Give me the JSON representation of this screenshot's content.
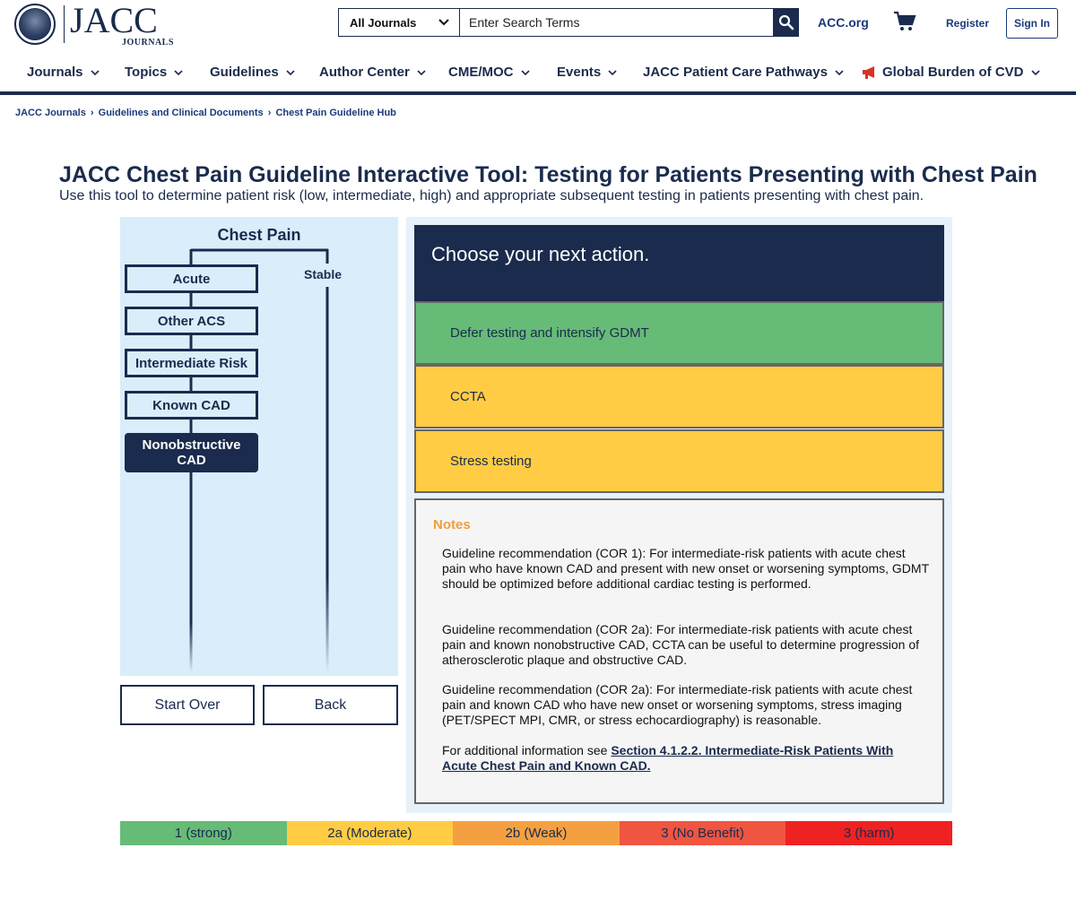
{
  "header": {
    "logo_text": "JACC",
    "logo_sub": "JOURNALS",
    "search": {
      "select_label": "All Journals",
      "placeholder": "Enter Search Terms"
    },
    "acc_link": "ACC.org",
    "register": "Register",
    "sign_in": "Sign In"
  },
  "nav": {
    "items": [
      {
        "label": "Journals"
      },
      {
        "label": "Topics"
      },
      {
        "label": "Guidelines"
      },
      {
        "label": "Author Center"
      },
      {
        "label": "CME/MOC"
      },
      {
        "label": "Events"
      },
      {
        "label": "JACC Patient Care Pathways"
      },
      {
        "label": "Global Burden of CVD"
      }
    ]
  },
  "breadcrumb": {
    "items": [
      "JACC Journals",
      "Guidelines and Clinical Documents",
      "Chest Pain Guideline Hub"
    ],
    "separator": "›"
  },
  "page": {
    "title": "JACC Chest Pain Guideline Interactive Tool: Testing for Patients Presenting with Chest Pain",
    "subtitle": "Use this tool to determine patient risk (low, intermediate, high) and appropriate subsequent testing in patients presenting with chest pain."
  },
  "flow": {
    "root": "Chest Pain",
    "stable": "Stable",
    "steps": [
      "Acute",
      "Other ACS",
      "Intermediate Risk",
      "Known CAD",
      "Nonobstructive CAD"
    ],
    "active_index": 4
  },
  "buttons": {
    "start_over": "Start Over",
    "back": "Back"
  },
  "action": {
    "heading": "Choose your next action.",
    "options": [
      {
        "label": "Defer testing and intensify GDMT",
        "color": "#66bb77"
      },
      {
        "label": "CCTA",
        "color": "#ffcc44"
      },
      {
        "label": "Stress testing",
        "color": "#ffcc44"
      }
    ]
  },
  "notes": {
    "title": "Notes",
    "paragraphs": [
      "Guideline recommendation (COR 1): For intermediate-risk patients with acute chest pain who have known CAD and present with new onset or worsening symptoms, GDMT should be optimized before additional cardiac testing is performed.",
      "Guideline recommendation (COR 2a): For intermediate-risk patients with acute chest pain and known nonobstructive CAD, CCTA can be useful to determine progression of atherosclerotic plaque and obstructive CAD.",
      "Guideline recommendation (COR 2a): For intermediate-risk patients with acute chest pain and known CAD who have new onset or worsening symptoms, stress imaging (PET/SPECT MPI, CMR, or stress echocardiography) is reasonable."
    ],
    "more_prefix": "For additional information see ",
    "more_link": "Section 4.1.2.2. Intermediate-Risk Patients With Acute Chest Pain and Known CAD."
  },
  "legend": [
    {
      "label": "1 (strong)",
      "color": "#66bb77"
    },
    {
      "label": "2a (Moderate)",
      "color": "#ffcc44"
    },
    {
      "label": "2b (Weak)",
      "color": "#f5a040"
    },
    {
      "label": "3 (No Benefit)",
      "color": "#ef5540"
    },
    {
      "label": "3 (harm)",
      "color": "#ee2222"
    }
  ],
  "icons": {
    "search": "search-icon",
    "cart": "cart-icon",
    "chevron": "chevron-down-icon",
    "megaphone": "megaphone-icon"
  }
}
